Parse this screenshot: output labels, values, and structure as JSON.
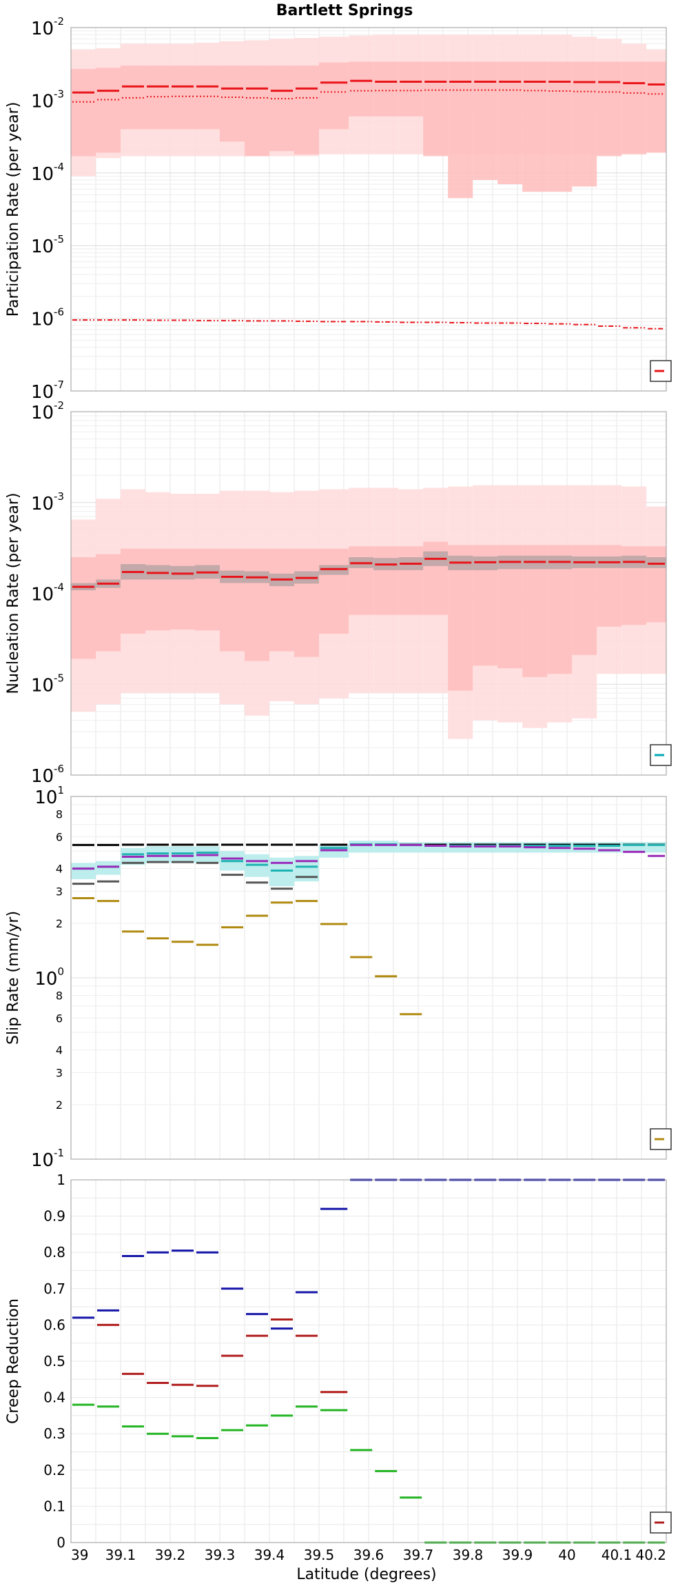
{
  "title": "Bartlett Springs",
  "xlabel": "Latitude (degrees)",
  "chart_data": [
    {
      "type": "line",
      "panel": "participation",
      "ylabel": "Participation Rate (per year)",
      "yscale": "log",
      "ylim_exp": [
        -7,
        -2
      ],
      "xlim": [
        39,
        40.2
      ],
      "x_ticks": [
        "39",
        "39.1",
        "39.2",
        "39.3",
        "39.4",
        "39.5",
        "39.6",
        "39.7",
        "39.8",
        "39.9",
        "40",
        "40.1",
        "40.2"
      ],
      "y_ticks": [
        {
          "base": "10",
          "exp": "-7"
        },
        {
          "base": "10",
          "exp": "-6"
        },
        {
          "base": "10",
          "exp": "-5"
        },
        {
          "base": "10",
          "exp": "-4"
        },
        {
          "base": "10",
          "exp": "-3"
        },
        {
          "base": "10",
          "exp": "-2"
        }
      ],
      "x_edges": [
        39.0,
        39.05,
        39.1,
        39.15,
        39.2,
        39.25,
        39.3,
        39.35,
        39.4,
        39.45,
        39.5,
        39.56,
        39.61,
        39.66,
        39.71,
        39.76,
        39.81,
        39.86,
        39.91,
        39.96,
        40.01,
        40.06,
        40.11,
        40.16,
        40.2
      ],
      "bands": [
        {
          "color": "#ffdada",
          "lower": [
            9e-05,
            0.00016,
            0.00017,
            0.00017,
            0.00017,
            0.00017,
            0.00017,
            0.00017,
            0.00017,
            0.00017,
            0.00018,
            0.00018,
            0.00018,
            0.00018,
            0.00018,
            0.00018,
            0.00018,
            0.00018,
            0.00018,
            0.00018,
            0.00018,
            0.00018,
            0.00019,
            0.00019
          ],
          "upper": [
            0.005,
            0.0052,
            0.006,
            0.006,
            0.006,
            0.0062,
            0.0065,
            0.0067,
            0.007,
            0.0072,
            0.0075,
            0.0078,
            0.008,
            0.008,
            0.008,
            0.008,
            0.008,
            0.008,
            0.008,
            0.008,
            0.0075,
            0.007,
            0.006,
            0.005
          ]
        },
        {
          "color": "#ffbcbc",
          "lower": [
            0.00017,
            0.00019,
            0.0004,
            0.0004,
            0.0004,
            0.0004,
            0.00027,
            0.00017,
            0.0002,
            0.00018,
            0.0004,
            0.0006,
            0.0006,
            0.0006,
            0.00017,
            4.5e-05,
            8e-05,
            7e-05,
            5.5e-05,
            5.5e-05,
            6.5e-05,
            0.00017,
            0.00018,
            0.00019
          ],
          "upper": [
            0.0027,
            0.0028,
            0.003,
            0.003,
            0.003,
            0.003,
            0.003,
            0.003,
            0.003,
            0.003,
            0.0033,
            0.0034,
            0.0034,
            0.0034,
            0.0034,
            0.0034,
            0.0034,
            0.0034,
            0.0034,
            0.0034,
            0.0034,
            0.0034,
            0.0034,
            0.0034
          ]
        }
      ],
      "series": [
        {
          "color": "#e8141a",
          "style": "solid",
          "width": 3,
          "values": [
            0.00128,
            0.00135,
            0.00155,
            0.00155,
            0.00155,
            0.00155,
            0.00145,
            0.00145,
            0.00135,
            0.00145,
            0.00175,
            0.00185,
            0.0018,
            0.0018,
            0.0018,
            0.0018,
            0.0018,
            0.0018,
            0.0018,
            0.0018,
            0.00178,
            0.00178,
            0.00172,
            0.00165
          ]
        },
        {
          "color": "#e8141a",
          "style": "dotted",
          "width": 2,
          "values": [
            0.00095,
            0.00102,
            0.00108,
            0.00112,
            0.00113,
            0.00113,
            0.0011,
            0.00108,
            0.00105,
            0.00108,
            0.0013,
            0.00135,
            0.00136,
            0.00136,
            0.00138,
            0.00138,
            0.00138,
            0.00138,
            0.00136,
            0.00134,
            0.00132,
            0.0013,
            0.00126,
            0.00122
          ]
        },
        {
          "color": "#e8141a",
          "style": "dashdot",
          "width": 2,
          "values": [
            9.5e-07,
            9.5e-07,
            9.5e-07,
            9.4e-07,
            9.4e-07,
            9.3e-07,
            9.3e-07,
            9.2e-07,
            9.2e-07,
            9.1e-07,
            9e-07,
            9e-07,
            8.9e-07,
            8.8e-07,
            8.8e-07,
            8.7e-07,
            8.6e-07,
            8.6e-07,
            8.5e-07,
            8.4e-07,
            8.2e-07,
            7.8e-07,
            7.4e-07,
            7.2e-07
          ]
        }
      ],
      "legend_color": "#e8141a"
    },
    {
      "type": "line",
      "panel": "nucleation",
      "ylabel": "Nucleation Rate (per year)",
      "yscale": "log",
      "ylim_exp": [
        -6,
        -2
      ],
      "xlim": [
        39,
        40.2
      ],
      "x_ticks": [
        "39",
        "39.1",
        "39.2",
        "39.3",
        "39.4",
        "39.5",
        "39.6",
        "39.7",
        "39.8",
        "39.9",
        "40",
        "40.1",
        "40.2"
      ],
      "y_ticks": [
        {
          "base": "10",
          "exp": "-6"
        },
        {
          "base": "10",
          "exp": "-5"
        },
        {
          "base": "10",
          "exp": "-4"
        },
        {
          "base": "10",
          "exp": "-3"
        },
        {
          "base": "10",
          "exp": "-2"
        }
      ],
      "x_edges": [
        39.0,
        39.05,
        39.1,
        39.15,
        39.2,
        39.25,
        39.3,
        39.35,
        39.4,
        39.45,
        39.5,
        39.56,
        39.61,
        39.66,
        39.71,
        39.76,
        39.81,
        39.86,
        39.91,
        39.96,
        40.01,
        40.06,
        40.11,
        40.16,
        40.2
      ],
      "bands": [
        {
          "color": "#ffdada",
          "lower": [
            5e-06,
            6e-06,
            8e-06,
            8e-06,
            8e-06,
            8e-06,
            6e-06,
            4.5e-06,
            6.5e-06,
            6e-06,
            7e-06,
            8e-06,
            8e-06,
            8e-06,
            8e-06,
            2.5e-06,
            4e-06,
            3.8e-06,
            3.3e-06,
            3.8e-06,
            4.2e-06,
            1.3e-05,
            1.3e-05,
            1.3e-05
          ],
          "upper": [
            0.00065,
            0.0011,
            0.0014,
            0.0013,
            0.00125,
            0.00125,
            0.00135,
            0.00135,
            0.0013,
            0.00135,
            0.0014,
            0.00145,
            0.00145,
            0.0014,
            0.00145,
            0.0015,
            0.00155,
            0.00155,
            0.00155,
            0.00155,
            0.00155,
            0.00155,
            0.0015,
            0.0009
          ]
        },
        {
          "color": "#ffbcbc",
          "lower": [
            1.9e-05,
            2.3e-05,
            3.6e-05,
            3.9e-05,
            4e-05,
            3.9e-05,
            2.3e-05,
            1.8e-05,
            2.3e-05,
            2e-05,
            3.6e-05,
            5.8e-05,
            5.8e-05,
            5.8e-05,
            5.8e-05,
            8.5e-06,
            1.6e-05,
            1.5e-05,
            1.2e-05,
            1.3e-05,
            2.1e-05,
            4.3e-05,
            4.5e-05,
            4.8e-05
          ],
          "upper": [
            0.00025,
            0.00027,
            0.00031,
            0.00031,
            0.00031,
            0.00031,
            0.00031,
            0.00031,
            0.00031,
            0.00031,
            0.00031,
            0.00033,
            0.00033,
            0.00033,
            0.00037,
            0.00034,
            0.00034,
            0.00034,
            0.00034,
            0.00034,
            0.00034,
            0.00034,
            0.00033,
            0.00033
          ]
        },
        {
          "color": "#b9a5a5",
          "lower": [
            0.000108,
            0.000115,
            0.000142,
            0.000142,
            0.000142,
            0.000145,
            0.00013,
            0.00013,
            0.00012,
            0.000128,
            0.00016,
            0.00019,
            0.00018,
            0.00018,
            0.0002,
            0.00018,
            0.00018,
            0.000185,
            0.000185,
            0.000185,
            0.00019,
            0.00019,
            0.00019,
            0.00019
          ],
          "upper": [
            0.00013,
            0.000142,
            0.00021,
            0.000205,
            0.0002,
            0.000205,
            0.000178,
            0.000175,
            0.000165,
            0.000175,
            0.000205,
            0.00025,
            0.000245,
            0.00025,
            0.00029,
            0.00026,
            0.000255,
            0.00026,
            0.00026,
            0.00026,
            0.000255,
            0.000255,
            0.00026,
            0.00025
          ]
        }
      ],
      "series": [
        {
          "color": "#e8141a",
          "style": "solid",
          "width": 3,
          "values": [
            0.000118,
            0.000128,
            0.000172,
            0.000168,
            0.000165,
            0.00017,
            0.000152,
            0.00015,
            0.000142,
            0.000148,
            0.000185,
            0.000215,
            0.000208,
            0.000212,
            0.00024,
            0.000218,
            0.00022,
            0.000222,
            0.000222,
            0.000222,
            0.00022,
            0.00022,
            0.000222,
            0.000212
          ]
        }
      ],
      "legend_color": "#00a8b4"
    },
    {
      "type": "line",
      "panel": "slip",
      "ylabel": "Slip Rate (mm/yr)",
      "yscale": "log",
      "ylim_exp": [
        -1,
        1
      ],
      "xlim": [
        39,
        40.2
      ],
      "x_ticks": [
        "39",
        "39.1",
        "39.2",
        "39.3",
        "39.4",
        "39.5",
        "39.6",
        "39.7",
        "39.8",
        "39.9",
        "40",
        "40.1",
        "40.2"
      ],
      "y_ticks": [
        {
          "base": "10",
          "exp": "-1"
        },
        {
          "base": "10",
          "exp": "0"
        },
        {
          "base": "10",
          "exp": "1"
        }
      ],
      "y_minor_labels": [
        {
          "v": 0.2,
          "t": "2"
        },
        {
          "v": 0.3,
          "t": "3"
        },
        {
          "v": 0.4,
          "t": "4"
        },
        {
          "v": 0.6,
          "t": "6"
        },
        {
          "v": 0.8,
          "t": "8"
        },
        {
          "v": 2,
          "t": "2"
        },
        {
          "v": 3,
          "t": "3"
        },
        {
          "v": 4,
          "t": "4"
        },
        {
          "v": 6,
          "t": "6"
        },
        {
          "v": 8,
          "t": "8"
        }
      ],
      "x_edges": [
        39.0,
        39.05,
        39.1,
        39.15,
        39.2,
        39.25,
        39.3,
        39.35,
        39.4,
        39.45,
        39.5,
        39.56,
        39.61,
        39.66,
        39.71,
        39.76,
        39.81,
        39.86,
        39.91,
        39.96,
        40.01,
        40.06,
        40.11,
        40.16,
        40.2
      ],
      "bands": [
        {
          "color": "#b2eaea",
          "lower": [
            3.5,
            3.7,
            4.2,
            4.3,
            4.3,
            4.3,
            3.9,
            3.6,
            3.2,
            3.4,
            4.6,
            4.9,
            4.9,
            4.9,
            4.9,
            4.9,
            4.9,
            4.9,
            4.9,
            4.9,
            4.9,
            4.9,
            4.9,
            4.9
          ],
          "upper": [
            4.3,
            4.4,
            5.2,
            5.3,
            5.3,
            5.3,
            5.0,
            4.8,
            4.6,
            4.7,
            5.4,
            5.7,
            5.7,
            5.6,
            5.6,
            5.6,
            5.6,
            5.6,
            5.6,
            5.6,
            5.6,
            5.6,
            5.6,
            5.6
          ]
        }
      ],
      "series": [
        {
          "color": "#000000",
          "style": "solid",
          "width": 3,
          "values": [
            5.4,
            5.4,
            5.42,
            5.42,
            5.42,
            5.42,
            5.42,
            5.42,
            5.42,
            5.42,
            5.42,
            5.42,
            5.42,
            5.42,
            5.42,
            5.42,
            5.42,
            5.42,
            5.42,
            5.42,
            5.42,
            5.42,
            5.42,
            5.42
          ]
        },
        {
          "color": "#1fb2b2",
          "style": "solid",
          "width": 3,
          "values": [
            4.0,
            4.1,
            4.8,
            4.85,
            4.85,
            4.9,
            4.4,
            4.2,
            3.9,
            4.1,
            5.2,
            5.45,
            5.45,
            5.4,
            5.35,
            5.35,
            5.35,
            5.35,
            5.35,
            5.35,
            5.35,
            5.35,
            5.4,
            5.4
          ]
        },
        {
          "color": "#9a2bb8",
          "style": "solid",
          "width": 3,
          "values": [
            4.0,
            4.1,
            4.65,
            4.7,
            4.7,
            4.75,
            4.55,
            4.4,
            4.3,
            4.4,
            5.05,
            5.4,
            5.4,
            5.4,
            5.35,
            5.3,
            5.3,
            5.3,
            5.25,
            5.2,
            5.15,
            5.05,
            4.95,
            4.7
          ]
        },
        {
          "color": "#555555",
          "style": "solid",
          "width": 3,
          "values": [
            3.3,
            3.4,
            4.3,
            4.35,
            4.35,
            4.3,
            3.7,
            3.35,
            3.1,
            3.6,
            null,
            null,
            null,
            null,
            null,
            null,
            null,
            null,
            null,
            null,
            null,
            null,
            null,
            null
          ]
        },
        {
          "color": "#b08a10",
          "style": "solid",
          "width": 3,
          "values": [
            2.75,
            2.65,
            1.8,
            1.65,
            1.58,
            1.52,
            1.9,
            2.2,
            2.6,
            2.65,
            1.98,
            1.3,
            1.02,
            0.63,
            null,
            null,
            null,
            null,
            null,
            null,
            null,
            null,
            null,
            null
          ]
        }
      ],
      "legend_color": "#b08a10"
    },
    {
      "type": "line",
      "panel": "creep",
      "ylabel": "Creep Reduction",
      "yscale": "linear",
      "ylim": [
        0,
        1
      ],
      "xlim": [
        39,
        40.2
      ],
      "x_ticks": [
        "39",
        "39.1",
        "39.2",
        "39.3",
        "39.4",
        "39.5",
        "39.6",
        "39.7",
        "39.8",
        "39.9",
        "40",
        "40.1",
        "40.2"
      ],
      "y_ticks": [
        "0",
        "0.1",
        "0.2",
        "0.3",
        "0.4",
        "0.5",
        "0.6",
        "0.7",
        "0.8",
        "0.9",
        "1"
      ],
      "x_edges": [
        39.0,
        39.05,
        39.1,
        39.15,
        39.2,
        39.25,
        39.3,
        39.35,
        39.4,
        39.45,
        39.5,
        39.56,
        39.61,
        39.66,
        39.71,
        39.76,
        39.81,
        39.86,
        39.91,
        39.96,
        40.01,
        40.06,
        40.11,
        40.16,
        40.2
      ],
      "bands": [],
      "series": [
        {
          "color": "#1414a8",
          "style": "solid",
          "width": 3,
          "values": [
            0.62,
            0.64,
            0.79,
            0.8,
            0.805,
            0.8,
            0.7,
            0.63,
            0.59,
            0.69,
            0.92,
            1,
            1,
            1,
            1,
            1,
            1,
            1,
            1,
            1,
            1,
            1,
            1,
            1
          ]
        },
        {
          "color": "#b01c1c",
          "style": "solid",
          "width": 3,
          "values": [
            null,
            0.6,
            0.465,
            0.44,
            0.435,
            0.432,
            0.515,
            0.57,
            0.615,
            0.57,
            0.415,
            null,
            null,
            null,
            null,
            null,
            null,
            null,
            null,
            null,
            null,
            null,
            null,
            null
          ]
        },
        {
          "color": "#22b422",
          "style": "solid",
          "width": 3,
          "values": [
            0.38,
            0.375,
            0.32,
            0.3,
            0.293,
            0.288,
            0.31,
            0.323,
            0.35,
            0.375,
            0.365,
            0.255,
            0.197,
            0.124,
            0,
            0,
            0,
            0,
            0,
            0,
            0,
            0,
            0,
            0
          ]
        }
      ],
      "legend_color": "#b01c1c"
    }
  ]
}
